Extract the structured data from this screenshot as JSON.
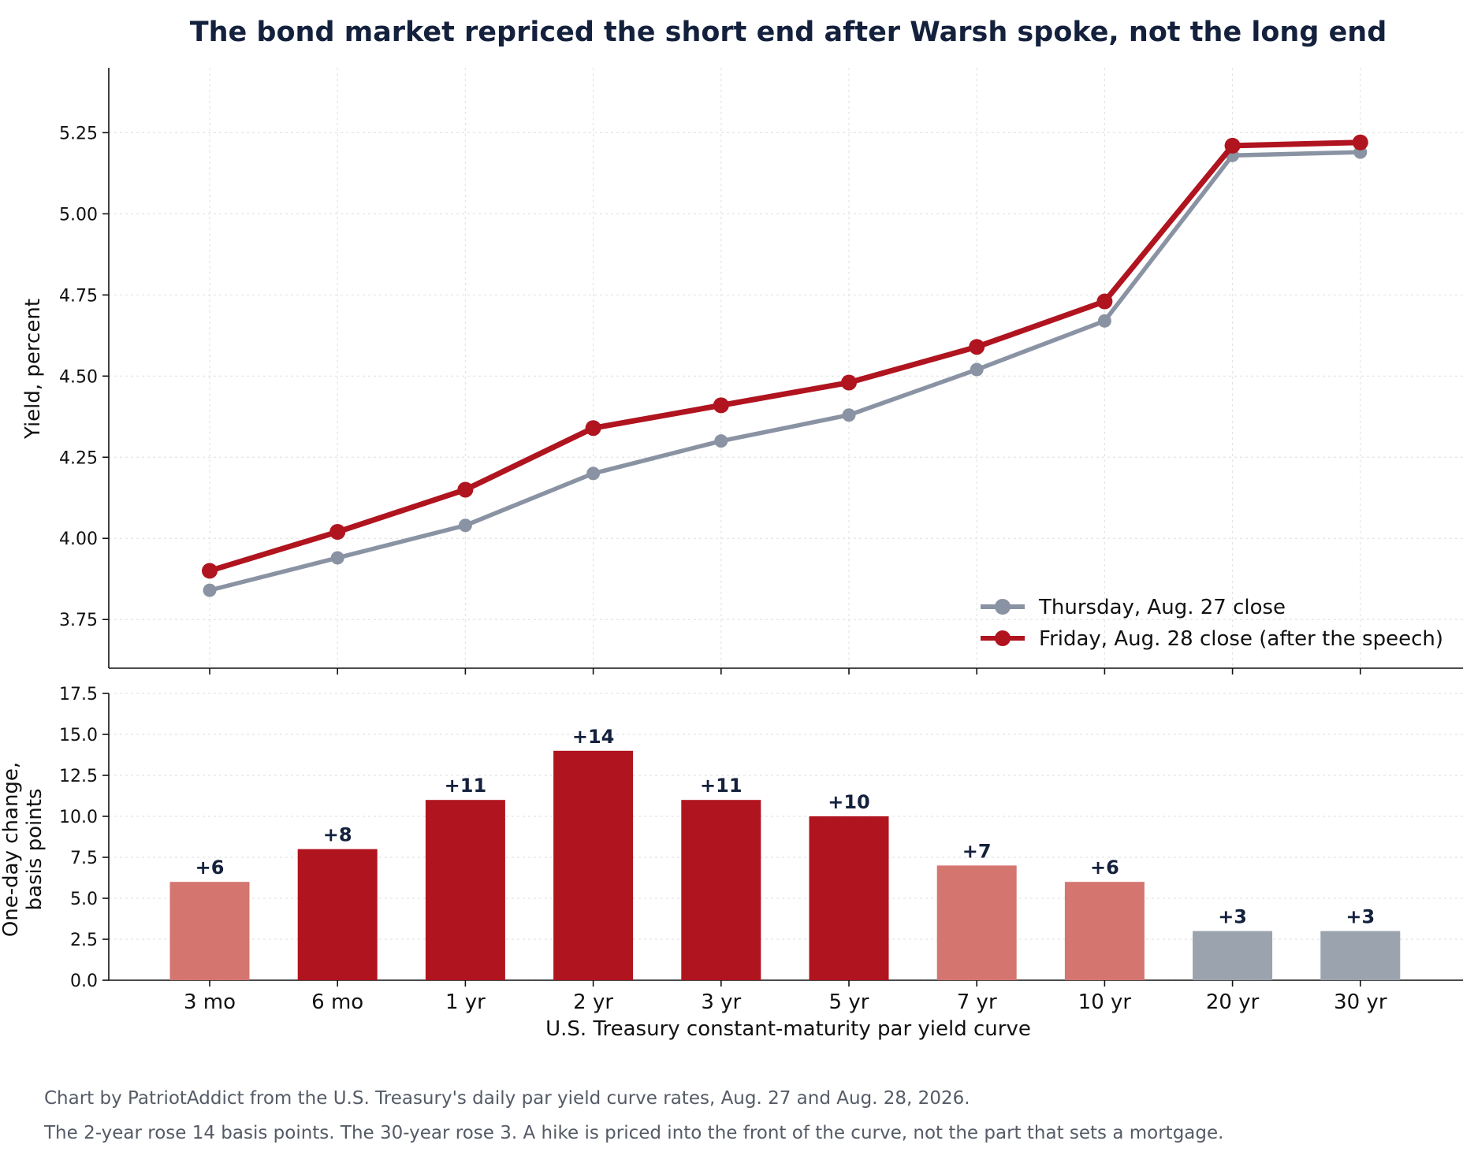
{
  "title": "The bond market repriced the short end after Warsh spoke, not the long end",
  "footer_lines": [
    "Chart by PatriotAddict from the U.S. Treasury's daily par yield curve rates, Aug. 27 and Aug. 28, 2026.",
    "The 2-year rose 14 basis points. The 30-year rose 3. A hike is priced into the front of the curve, not the part that sets a mortgage."
  ],
  "colors": {
    "thursday": "#8a93a3",
    "friday": "#b0141f",
    "bar_large": "#b0141f",
    "bar_medium": "#d4766f",
    "bar_small": "#9aa3ae",
    "text_dark": "#14213d",
    "footer": "#555b66"
  },
  "chart_data": [
    {
      "type": "line",
      "categories": [
        "3 mo",
        "6 mo",
        "1 yr",
        "2 yr",
        "3 yr",
        "5 yr",
        "7 yr",
        "10 yr",
        "20 yr",
        "30 yr"
      ],
      "ylabel": "Yield, percent",
      "ylim": [
        3.6,
        5.45
      ],
      "yticks": [
        "3.75",
        "4.00",
        "4.25",
        "4.50",
        "4.75",
        "5.00",
        "5.25"
      ],
      "grid": true,
      "legend_position": "lower-right",
      "series": [
        {
          "name": "Thursday, Aug. 27 close",
          "color_key": "thursday",
          "values": [
            3.84,
            3.94,
            4.04,
            4.2,
            4.3,
            4.38,
            4.52,
            4.67,
            5.18,
            5.19
          ]
        },
        {
          "name": "Friday, Aug. 28 close (after the speech)",
          "color_key": "friday",
          "values": [
            3.9,
            4.02,
            4.15,
            4.34,
            4.41,
            4.48,
            4.59,
            4.73,
            5.21,
            5.22
          ]
        }
      ]
    },
    {
      "type": "bar",
      "categories": [
        "3 mo",
        "6 mo",
        "1 yr",
        "2 yr",
        "3 yr",
        "5 yr",
        "7 yr",
        "10 yr",
        "20 yr",
        "30 yr"
      ],
      "values": [
        6,
        8,
        11,
        14,
        11,
        10,
        7,
        6,
        3,
        3
      ],
      "labels": [
        "+6",
        "+8",
        "+11",
        "+14",
        "+11",
        "+10",
        "+7",
        "+6",
        "+3",
        "+3"
      ],
      "bar_color_keys": [
        "bar_medium",
        "bar_large",
        "bar_large",
        "bar_large",
        "bar_large",
        "bar_large",
        "bar_medium",
        "bar_medium",
        "bar_small",
        "bar_small"
      ],
      "ylabel_lines": [
        "One-day change,",
        "basis points"
      ],
      "ylim": [
        0,
        17.5
      ],
      "yticks": [
        "0.0",
        "2.5",
        "5.0",
        "7.5",
        "10.0",
        "12.5",
        "15.0",
        "17.5"
      ],
      "xlabel": "U.S. Treasury constant-maturity par yield curve",
      "grid": true
    }
  ]
}
